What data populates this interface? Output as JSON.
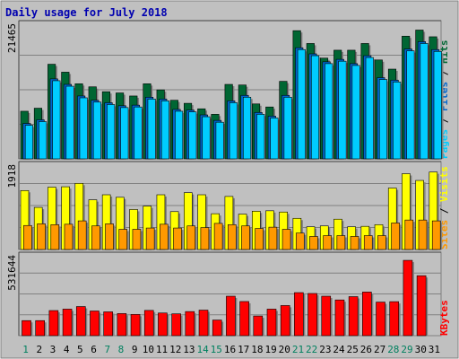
{
  "chart_data": [
    {
      "type": "bar",
      "title": "Daily usage for July 2018",
      "categories": [
        "1",
        "2",
        "3",
        "4",
        "5",
        "6",
        "7",
        "8",
        "9",
        "10",
        "11",
        "12",
        "13",
        "14",
        "15",
        "16",
        "17",
        "18",
        "19",
        "20",
        "21",
        "22",
        "23",
        "24",
        "25",
        "26",
        "27",
        "28",
        "29",
        "30",
        "31"
      ],
      "weekend_days": [
        "1",
        "7",
        "8",
        "14",
        "15",
        "21",
        "22",
        "28",
        "29"
      ],
      "panel": "hits-files-pages",
      "ymax": 21465,
      "ymax_label": "21465",
      "ylabel_parts": [
        "Pages",
        "Files",
        "Hits"
      ],
      "series": [
        {
          "name": "Hits",
          "color": "#006633",
          "values": [
            7800,
            8300,
            15500,
            14200,
            12300,
            11800,
            11000,
            10800,
            10300,
            12300,
            11300,
            9600,
            9100,
            8200,
            7300,
            12200,
            12100,
            9000,
            8500,
            12700,
            21000,
            18900,
            16500,
            17800,
            17800,
            18900,
            16200,
            14700,
            20100,
            21100,
            20000
          ]
        },
        {
          "name": "Files",
          "color": "#0066cc",
          "values": [
            5800,
            6400,
            13100,
            12200,
            10300,
            9600,
            9200,
            8700,
            8800,
            10100,
            9800,
            8100,
            8000,
            7200,
            6300,
            9500,
            10400,
            7600,
            7000,
            10400,
            18200,
            17200,
            15900,
            16300,
            15600,
            16900,
            13300,
            12900,
            18000,
            19200,
            17900
          ]
        },
        {
          "name": "Pages",
          "color": "#00ccff",
          "values": [
            5500,
            6100,
            12800,
            11900,
            10000,
            9300,
            8900,
            8400,
            8500,
            9800,
            9500,
            7800,
            7700,
            6900,
            6000,
            9200,
            10100,
            7300,
            6700,
            10100,
            17900,
            16900,
            15600,
            16000,
            15300,
            16600,
            13000,
            12600,
            17700,
            18900,
            17600
          ]
        }
      ]
    },
    {
      "type": "bar",
      "panel": "visits-sites",
      "ymax": 1918,
      "ymax_label": "1918",
      "ylabel_parts": [
        "Sites",
        "Visits"
      ],
      "series": [
        {
          "name": "Visits",
          "color": "#ffff00",
          "values": [
            1400,
            1000,
            1480,
            1490,
            1570,
            1180,
            1300,
            1240,
            950,
            1030,
            1300,
            900,
            1350,
            1300,
            850,
            1260,
            840,
            910,
            920,
            890,
            740,
            540,
            560,
            720,
            540,
            550,
            590,
            1460,
            1800,
            1640,
            1840
          ]
        },
        {
          "name": "Sites",
          "color": "#ff9900",
          "values": [
            570,
            610,
            590,
            600,
            680,
            560,
            610,
            480,
            480,
            510,
            600,
            510,
            560,
            520,
            620,
            590,
            560,
            500,
            530,
            480,
            390,
            310,
            330,
            330,
            310,
            330,
            330,
            630,
            700,
            700,
            680
          ]
        }
      ]
    },
    {
      "type": "bar",
      "panel": "kbytes",
      "ymax": 531644,
      "ymax_label": "531644",
      "ylabel_parts": [
        "KBytes"
      ],
      "series": [
        {
          "name": "KBytes",
          "color": "#ff0000",
          "values": [
            105000,
            105000,
            175000,
            185000,
            203000,
            172000,
            166000,
            154000,
            148000,
            176000,
            158000,
            152000,
            168000,
            178000,
            109000,
            275000,
            238000,
            137000,
            185000,
            210000,
            300000,
            294000,
            275000,
            249000,
            272000,
            304000,
            234000,
            237000,
            525000,
            418000,
            0
          ]
        }
      ]
    }
  ]
}
